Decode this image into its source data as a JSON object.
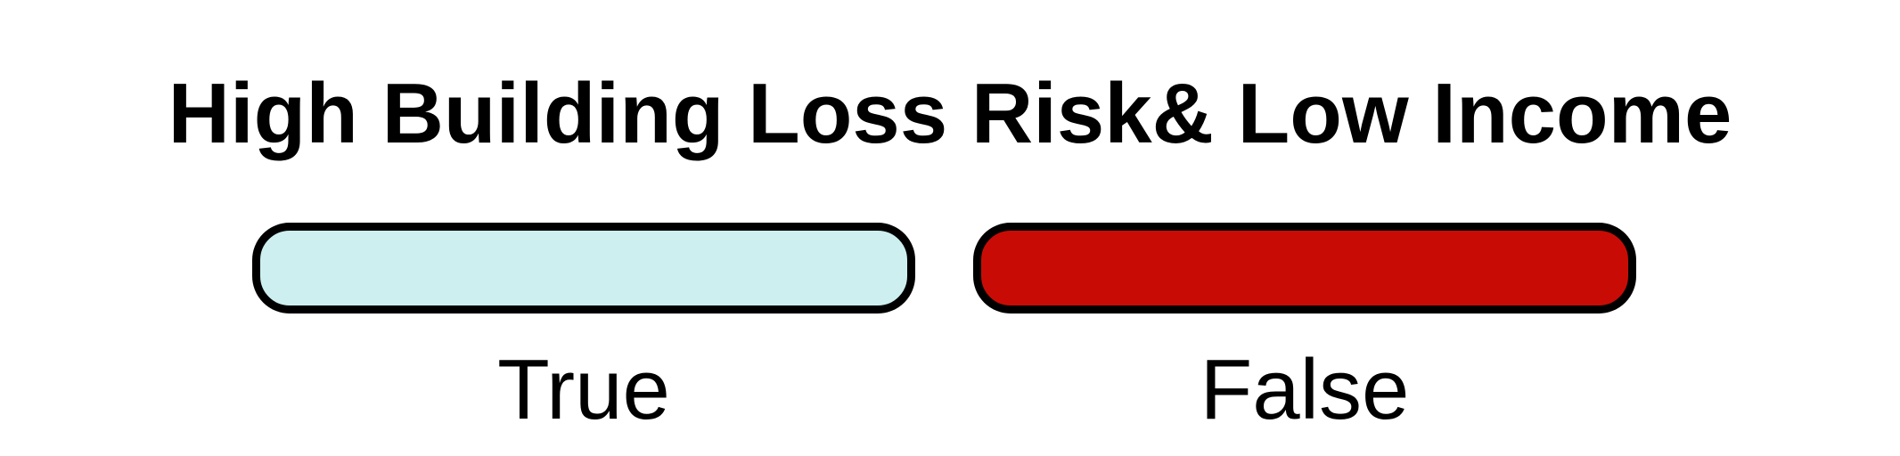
{
  "legend": {
    "title": "High Building Loss Risk& Low Income",
    "items": [
      {
        "label": "True",
        "color": "#cdeff0"
      },
      {
        "label": "False",
        "color": "#c80c05"
      }
    ],
    "border_color": "#000000"
  }
}
